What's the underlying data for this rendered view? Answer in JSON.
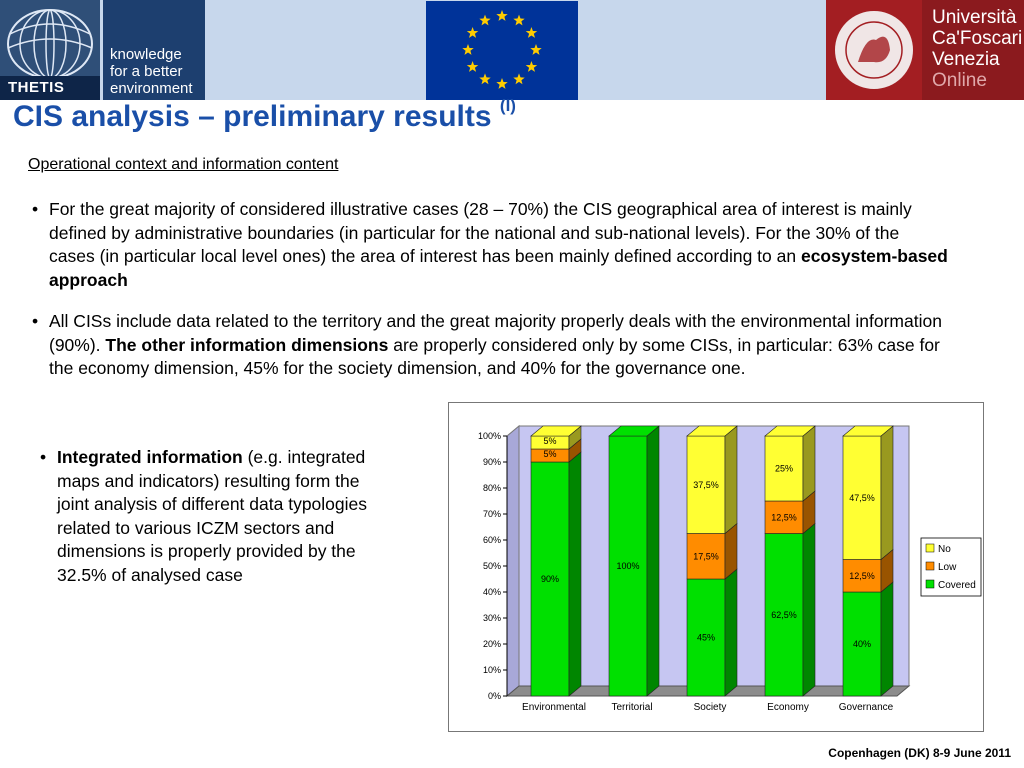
{
  "header": {
    "thetis_label": "THETIS",
    "kbe_lines": [
      "knowledge",
      "for a better",
      "environment"
    ],
    "unive_lines": [
      "Università",
      "Ca'Foscari",
      "Venezia",
      "Online"
    ],
    "seal_text": "VENETIARVM VNIVERSITAS · IN DOMO FOSCARI"
  },
  "title": {
    "main": "CIS analysis – preliminary results",
    "sup": "(I)"
  },
  "section_heading": "Operational context and information content",
  "bullets": {
    "b1": "For the great majority of considered illustrative cases (28 – 70%) the CIS geographical area of interest is mainly defined by administrative boundaries (in particular for the national and sub-national levels). For the 30% of the cases (in particular local level ones) the area of interest has been mainly defined according to an",
    "b1_bold": "ecosystem-based approach",
    "b2_a": "All CISs include data related to the territory and the great majority properly deals with the environmental information (90%).",
    "b2_bold": "The other information dimensions",
    "b2_b": "are properly considered only by some CISs, in particular: 63% case for the economy dimension, 45% for the society dimension, and 40% for the governance one.",
    "b3_bold": "Integrated information",
    "b3": "(e.g. integrated maps and indicators) resulting form the joint analysis of different data typologies related to various ICZM sectors and dimensions is properly provided by the 32.5% of analysed case"
  },
  "chart_data": {
    "type": "bar",
    "stacked": true,
    "categories": [
      "Environmental",
      "Territorial",
      "Society",
      "Economy",
      "Governance"
    ],
    "series": [
      {
        "name": "Covered",
        "color": "#00e000",
        "values": [
          90,
          100,
          45,
          62.5,
          40
        ],
        "labels": [
          "90%",
          "100%",
          "45%",
          "62,5%",
          "40%"
        ]
      },
      {
        "name": "Low",
        "color": "#ff8c00",
        "values": [
          5,
          0,
          17.5,
          12.5,
          12.5
        ],
        "labels": [
          "5%",
          "",
          "17,5%",
          "12,5%",
          "12,5%"
        ]
      },
      {
        "name": "No",
        "color": "#ffff33",
        "values": [
          5,
          0,
          37.5,
          25,
          47.5
        ],
        "labels": [
          "5%",
          "",
          "37,5%",
          "25%",
          "47,5%"
        ]
      }
    ],
    "yticks": [
      "0%",
      "10%",
      "20%",
      "30%",
      "40%",
      "50%",
      "60%",
      "70%",
      "80%",
      "90%",
      "100%"
    ],
    "ylim": [
      0,
      100
    ],
    "legend": [
      "No",
      "Low",
      "Covered"
    ],
    "legend_position": "right",
    "grid": false
  },
  "footer": "Copenhagen (DK) 8-9 June 2011"
}
